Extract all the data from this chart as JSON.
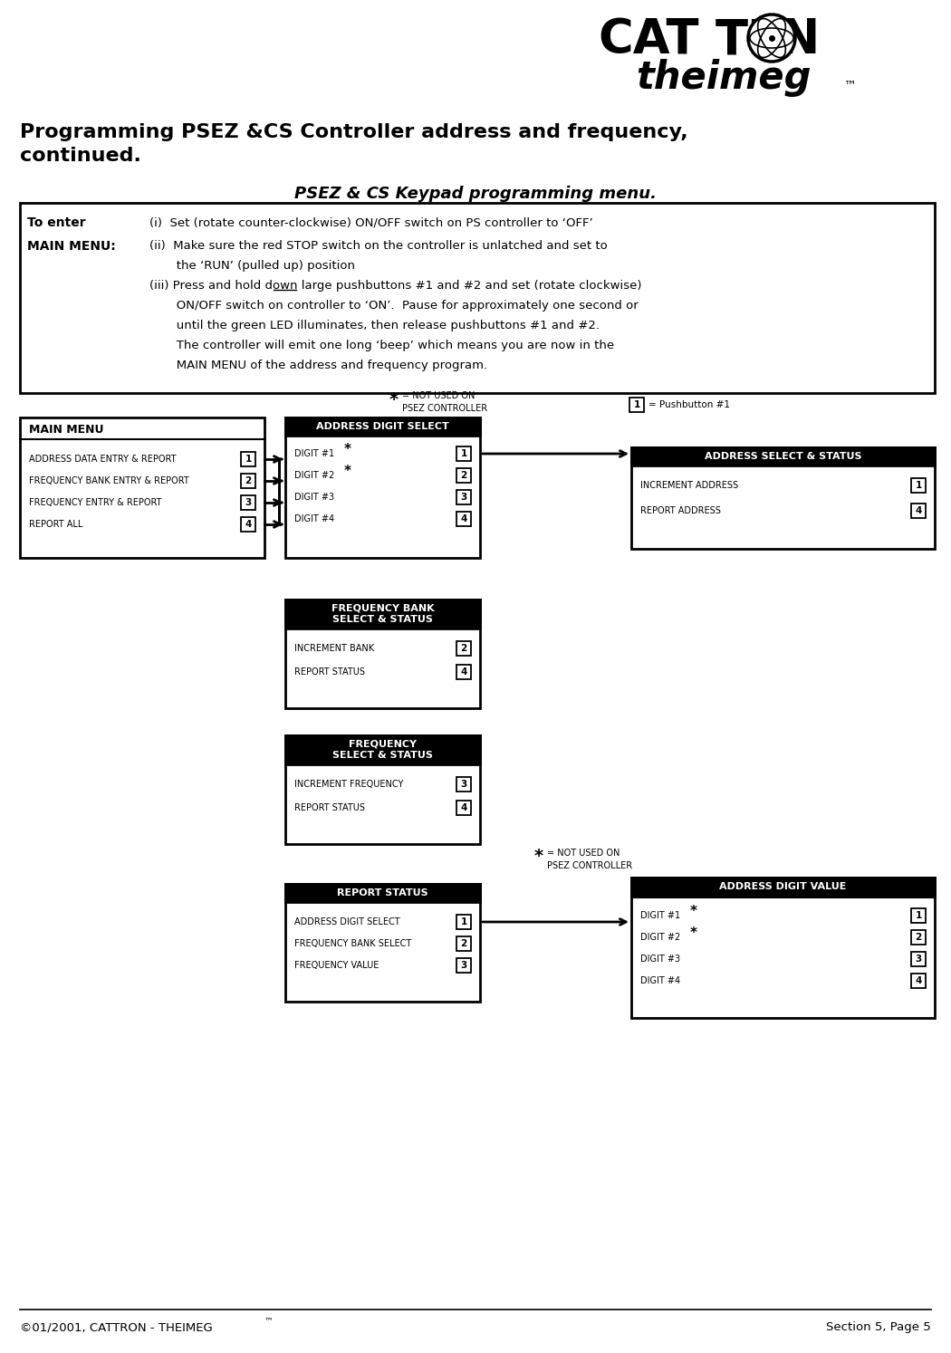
{
  "title_line1": "Programming PSEZ &CS Controller address and frequency,",
  "title_line2": "continued.",
  "section_label": "PSEZ & CS Keypad programming menu.",
  "footer_left": "©01/2001, CATTRON - THEIMEG",
  "footer_left_tm": "™",
  "footer_right": "Section 5, Page 5",
  "main_menu_title": "MAIN MENU",
  "main_menu_items": [
    [
      "ADDRESS DATA ENTRY & REPORT",
      "1"
    ],
    [
      "FREQUENCY BANK ENTRY & REPORT",
      "2"
    ],
    [
      "FREQUENCY ENTRY & REPORT",
      "3"
    ],
    [
      "REPORT ALL",
      "4"
    ]
  ],
  "addr_digit_select_title": "ADDRESS DIGIT SELECT",
  "addr_digit_select_items": [
    [
      "DIGIT #1",
      "*",
      "1"
    ],
    [
      "DIGIT #2",
      "*",
      "2"
    ],
    [
      "DIGIT #3",
      "",
      "3"
    ],
    [
      "DIGIT #4",
      "",
      "4"
    ]
  ],
  "addr_select_status_title": "ADDRESS SELECT & STATUS",
  "addr_select_status_items": [
    [
      "INCREMENT ADDRESS",
      "1"
    ],
    [
      "REPORT ADDRESS",
      "4"
    ]
  ],
  "freq_bank_title1": "FREQUENCY BANK",
  "freq_bank_title2": "SELECT & STATUS",
  "freq_bank_items": [
    [
      "INCREMENT BANK",
      "2"
    ],
    [
      "REPORT STATUS",
      "4"
    ]
  ],
  "freq_select_title1": "FREQUENCY",
  "freq_select_title2": "SELECT & STATUS",
  "freq_select_items": [
    [
      "INCREMENT FREQUENCY",
      "3"
    ],
    [
      "REPORT STATUS",
      "4"
    ]
  ],
  "report_status_title": "REPORT STATUS",
  "report_status_items": [
    [
      "ADDRESS DIGIT SELECT",
      "1"
    ],
    [
      "FREQUENCY BANK SELECT",
      "2"
    ],
    [
      "FREQUENCY VALUE",
      "3"
    ]
  ],
  "addr_digit_value_title": "ADDRESS DIGIT VALUE",
  "addr_digit_value_items": [
    [
      "DIGIT #1",
      "*",
      "1"
    ],
    [
      "DIGIT #2",
      "*",
      "2"
    ],
    [
      "DIGIT #3",
      "",
      "3"
    ],
    [
      "DIGIT #4",
      "",
      "4"
    ]
  ],
  "note_star_top": "= NOT USED ON\nPSEZ CONTROLLER",
  "note_star_bottom": "= NOT USED ON\nPSEZ CONTROLLER",
  "note_pushbutton": "= Pushbutton #1",
  "instr_to_enter_bold": "To enter",
  "instr_main_menu_bold": "MAIN MENU:",
  "instr_lines": [
    "(i)  Set (rotate counter-clockwise) ON/OFF switch on PS controller to ‘OFF’",
    "(ii)  Make sure the red STOP switch on the controller is unlatched and set to",
    "       the ‘RUN’ (pulled up) position",
    "(iii) Press and hold down large pushbuttons #1 and #2 and set (rotate clockwise)",
    "       ON/OFF switch on controller to ‘ON’.  Pause for approximately one second or",
    "       until the green LED illuminates, then release pushbuttons #1 and #2.",
    "       The controller will emit one long ‘beep’ which means you are now in the",
    "       MAIN MENU of the address and frequency program."
  ]
}
